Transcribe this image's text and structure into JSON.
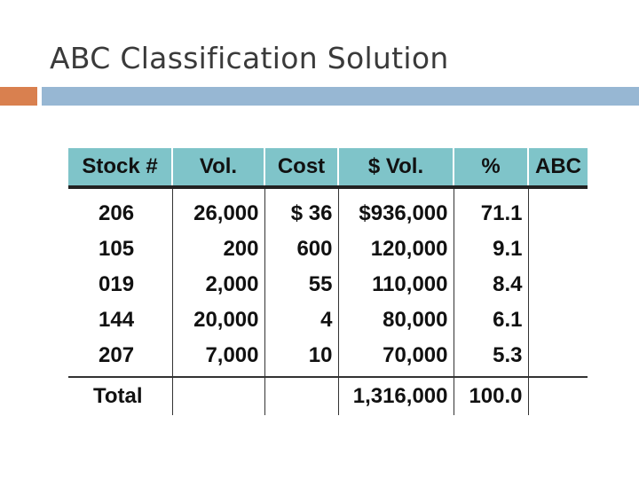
{
  "slide": {
    "title": "ABC Classification Solution"
  },
  "table": {
    "headers": [
      "Stock #",
      "Vol.",
      "Cost",
      "$ Vol.",
      "%",
      "ABC"
    ],
    "rows": [
      [
        "206",
        "26,000",
        "$ 36",
        "$936,000",
        "71.1",
        ""
      ],
      [
        "105",
        "200",
        "600",
        "120,000",
        "9.1",
        ""
      ],
      [
        "019",
        "2,000",
        "55",
        "110,000",
        "8.4",
        ""
      ],
      [
        "144",
        "20,000",
        "4",
        "80,000",
        "6.1",
        ""
      ],
      [
        "207",
        "7,000",
        "10",
        "70,000",
        "5.3",
        ""
      ]
    ],
    "total": [
      "Total",
      "",
      "",
      "1,316,000",
      "100.0",
      ""
    ]
  },
  "colors": {
    "header_fill": "#7fc4c9",
    "accent_orange": "#d9804f",
    "accent_blue": "#97b7d3"
  }
}
